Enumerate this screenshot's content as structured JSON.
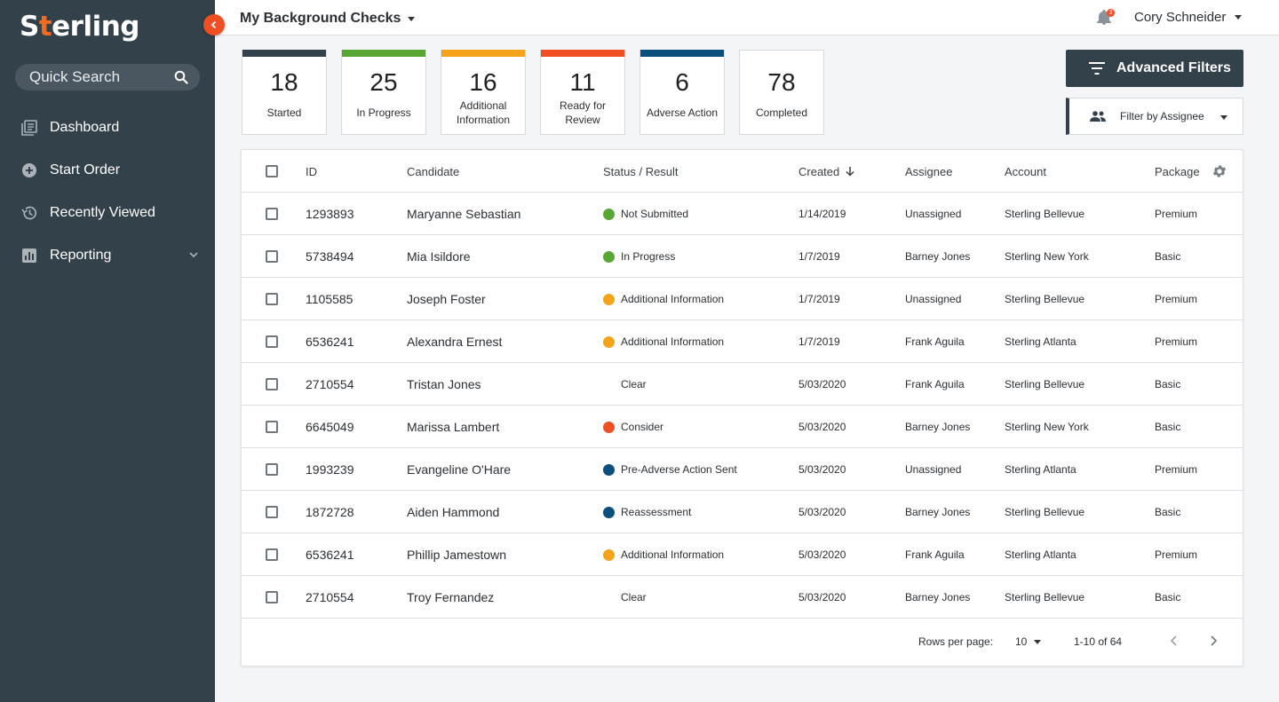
{
  "sidebar": {
    "logo": {
      "pre": "S",
      "accent": "t",
      "post": "erling"
    },
    "quick_search_placeholder": "Quick Search",
    "items": [
      {
        "label": "Dashboard",
        "icon": "dashboard-icon"
      },
      {
        "label": "Start Order",
        "icon": "plus-circle-icon"
      },
      {
        "label": "Recently Viewed",
        "icon": "history-icon"
      },
      {
        "label": "Reporting",
        "icon": "bar-chart-icon"
      }
    ]
  },
  "header": {
    "title": "My Background Checks",
    "notification_count": "3",
    "user_name": "Cory Schneider"
  },
  "stats": [
    {
      "count": "18",
      "label": "Started",
      "color": "#33414b"
    },
    {
      "count": "25",
      "label": "In Progress",
      "color": "#5aa634"
    },
    {
      "count": "16",
      "label": "Additional Information",
      "color": "#f5a31a"
    },
    {
      "count": "11",
      "label": "Ready for Review",
      "color": "#f04e23"
    },
    {
      "count": "6",
      "label": "Adverse Action",
      "color": "#0c4e7c"
    },
    {
      "count": "78",
      "label": "Completed",
      "color": "#ffffff"
    }
  ],
  "actions": {
    "advanced_filters": "Advanced Filters",
    "filter_by_assignee": "Filter by Assignee"
  },
  "table": {
    "columns": {
      "id": "ID",
      "candidate": "Candidate",
      "status": "Status / Result",
      "created": "Created",
      "assignee": "Assignee",
      "account": "Account",
      "package": "Package"
    },
    "rows": [
      {
        "id": "1293893",
        "candidate": "Maryanne Sebastian",
        "status": "Not Submitted",
        "status_color": "#5aa634",
        "created": "1/14/2019",
        "assignee": "Unassigned",
        "account": "Sterling Bellevue",
        "package": "Premium"
      },
      {
        "id": "5738494",
        "candidate": "Mia Isildore",
        "status": "In Progress",
        "status_color": "#5aa634",
        "created": "1/7/2019",
        "assignee": "Barney Jones",
        "account": "Sterling New York",
        "package": "Basic"
      },
      {
        "id": "1105585",
        "candidate": "Joseph Foster",
        "status": "Additional Information",
        "status_color": "#f5a31a",
        "created": "1/7/2019",
        "assignee": "Unassigned",
        "account": "Sterling Bellevue",
        "package": "Premium"
      },
      {
        "id": "6536241",
        "candidate": "Alexandra Ernest",
        "status": "Additional Information",
        "status_color": "#f5a31a",
        "created": "1/7/2019",
        "assignee": "Frank Aguila",
        "account": "Sterling Atlanta",
        "package": "Premium"
      },
      {
        "id": "2710554",
        "candidate": "Tristan Jones",
        "status": "Clear",
        "status_color": "",
        "created": "5/03/2020",
        "assignee": "Frank Aguila",
        "account": "Sterling Bellevue",
        "package": "Basic"
      },
      {
        "id": "6645049",
        "candidate": "Marissa Lambert",
        "status": "Consider",
        "status_color": "#f04e23",
        "created": "5/03/2020",
        "assignee": "Barney Jones",
        "account": "Sterling New York",
        "package": "Basic"
      },
      {
        "id": "1993239",
        "candidate": "Evangeline O'Hare",
        "status": "Pre-Adverse Action Sent",
        "status_color": "#0c4e7c",
        "created": "5/03/2020",
        "assignee": "Unassigned",
        "account": "Sterling Atlanta",
        "package": "Premium"
      },
      {
        "id": "1872728",
        "candidate": "Aiden Hammond",
        "status": "Reassessment",
        "status_color": "#0c4e7c",
        "created": "5/03/2020",
        "assignee": "Barney Jones",
        "account": "Sterling Bellevue",
        "package": "Basic"
      },
      {
        "id": "6536241",
        "candidate": "Phillip Jamestown",
        "status": "Additional Information",
        "status_color": "#f5a31a",
        "created": "5/03/2020",
        "assignee": "Frank Aguila",
        "account": "Sterling Atlanta",
        "package": "Premium"
      },
      {
        "id": "2710554",
        "candidate": "Troy Fernandez",
        "status": "Clear",
        "status_color": "",
        "created": "5/03/2020",
        "assignee": "Barney Jones",
        "account": "Sterling Bellevue",
        "package": "Basic"
      }
    ]
  },
  "pagination": {
    "rows_per_page_label": "Rows per page:",
    "rows_per_page": "10",
    "range": "1-10 of 64"
  }
}
